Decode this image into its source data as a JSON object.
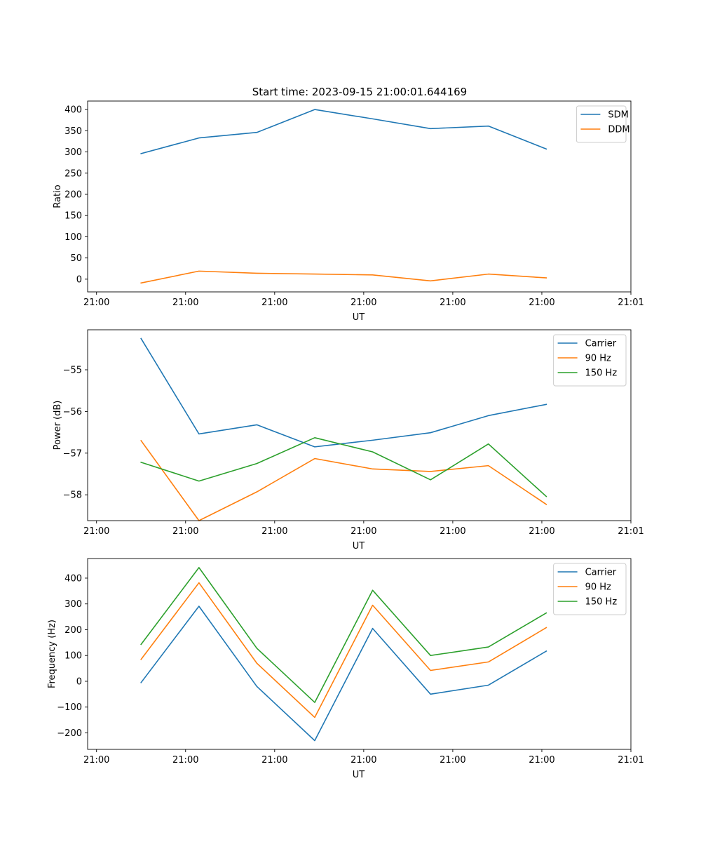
{
  "title": "Start time: 2023-09-15 21:00:01.644169",
  "chart_data": [
    {
      "type": "line",
      "title": "Start time: 2023-09-15 21:00:01.644169",
      "xlabel": "UT",
      "ylabel": "Ratio",
      "x": [
        0.5,
        1.15,
        1.8,
        2.45,
        3.1,
        3.75,
        4.4,
        5.05
      ],
      "xlim": [
        -0.1,
        6.0
      ],
      "xticks": [
        0,
        1,
        2,
        3,
        4,
        5,
        6
      ],
      "xtick_labels": [
        "21:00",
        "21:00",
        "21:00",
        "21:00",
        "21:00",
        "21:00",
        "21:01"
      ],
      "ylim": [
        -30,
        420
      ],
      "yticks": [
        0,
        50,
        100,
        150,
        200,
        250,
        300,
        350,
        400
      ],
      "ytick_labels": [
        "0",
        "50",
        "100",
        "150",
        "200",
        "250",
        "300",
        "350",
        "400"
      ],
      "legend": "top-right",
      "series": [
        {
          "name": "SDM",
          "color": "#1f77b4",
          "values": [
            296,
            333,
            346,
            400,
            378,
            355,
            361,
            307
          ]
        },
        {
          "name": "DDM",
          "color": "#ff7f0e",
          "values": [
            -9,
            19,
            14,
            12,
            10,
            -4,
            12,
            3
          ]
        }
      ]
    },
    {
      "type": "line",
      "title": "",
      "xlabel": "UT",
      "ylabel": "Power (dB)",
      "x": [
        0.5,
        1.15,
        1.8,
        2.45,
        3.1,
        3.75,
        4.4,
        5.05
      ],
      "xlim": [
        -0.1,
        6.0
      ],
      "xticks": [
        0,
        1,
        2,
        3,
        4,
        5,
        6
      ],
      "xtick_labels": [
        "21:00",
        "21:00",
        "21:00",
        "21:00",
        "21:00",
        "21:00",
        "21:01"
      ],
      "ylim": [
        -58.62,
        -54.04
      ],
      "yticks": [
        -58,
        -57,
        -56,
        -55
      ],
      "ytick_labels": [
        "−58",
        "−57",
        "−56",
        "−55"
      ],
      "legend": "top-right",
      "series": [
        {
          "name": "Carrier",
          "color": "#1f77b4",
          "values": [
            -54.25,
            -56.54,
            -56.32,
            -56.85,
            -56.69,
            -56.51,
            -56.1,
            -55.83
          ]
        },
        {
          "name": "90 Hz",
          "color": "#ff7f0e",
          "values": [
            -56.7,
            -58.62,
            -57.93,
            -57.13,
            -57.38,
            -57.44,
            -57.3,
            -58.23
          ]
        },
        {
          "name": "150 Hz",
          "color": "#2ca02c",
          "values": [
            -57.22,
            -57.67,
            -57.25,
            -56.63,
            -56.97,
            -57.64,
            -56.78,
            -58.04
          ]
        }
      ]
    },
    {
      "type": "line",
      "title": "",
      "xlabel": "UT",
      "ylabel": "Frequency (Hz)",
      "x": [
        0.5,
        1.15,
        1.8,
        2.45,
        3.1,
        3.75,
        4.4,
        5.05
      ],
      "xlim": [
        -0.1,
        6.0
      ],
      "xticks": [
        0,
        1,
        2,
        3,
        4,
        5,
        6
      ],
      "xtick_labels": [
        "21:00",
        "21:00",
        "21:00",
        "21:00",
        "21:00",
        "21:00",
        "21:01"
      ],
      "ylim": [
        -264,
        476
      ],
      "yticks": [
        -200,
        -100,
        0,
        100,
        200,
        300,
        400
      ],
      "ytick_labels": [
        "−200",
        "−100",
        "0",
        "100",
        "200",
        "300",
        "400"
      ],
      "legend": "top-right",
      "series": [
        {
          "name": "Carrier",
          "color": "#1f77b4",
          "values": [
            -5,
            291,
            -20,
            -230,
            205,
            -50,
            -15,
            117
          ]
        },
        {
          "name": "90 Hz",
          "color": "#ff7f0e",
          "values": [
            85,
            382,
            70,
            -140,
            295,
            42,
            75,
            208
          ]
        },
        {
          "name": "150 Hz",
          "color": "#2ca02c",
          "values": [
            143,
            441,
            128,
            -82,
            353,
            100,
            133,
            265
          ]
        }
      ]
    }
  ]
}
